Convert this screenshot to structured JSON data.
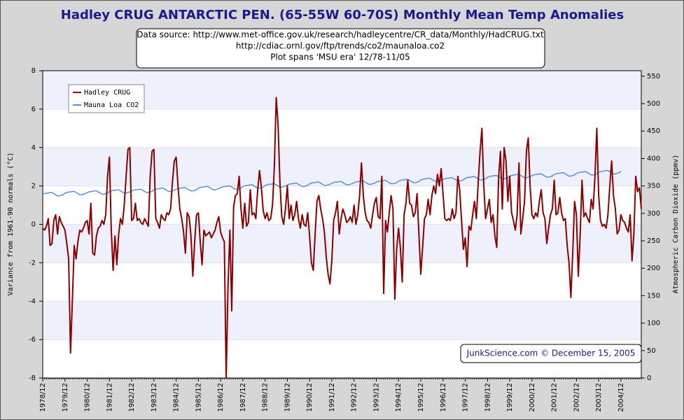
{
  "chart_data": {
    "type": "line",
    "title": "Hadley CRUG ANTARCTIC PEN. (65-55W 60-70S) Monthly Mean Temp Anomalies",
    "annotations": [
      "Data source: http://www.met-office.gov.uk/research/hadleycentre/CR_data/Monthly/HadCRUG.txt",
      "http://cdiac.ornl.gov/ftp/trends/co2/maunaloa.co2",
      "Plot spans 'MSU era' 12/78-11/05"
    ],
    "footnote": "JunkScience.com © December 15, 2005",
    "ylabel": "Variance from 1961-90 normals (°C)",
    "y2label": "Atmospheric Carbon Dioxide (ppmv)",
    "categories": [
      "1978/12",
      null,
      null,
      null,
      null,
      null,
      null,
      null,
      null,
      null,
      null,
      null,
      "1979/12",
      null,
      null,
      null,
      null,
      null,
      null,
      null,
      null,
      null,
      null,
      null,
      "1980/12",
      null,
      null,
      null,
      null,
      null,
      null,
      null,
      null,
      null,
      null,
      null,
      "1981/12",
      null,
      null,
      null,
      null,
      null,
      null,
      null,
      null,
      null,
      null,
      null,
      "1982/12",
      null,
      null,
      null,
      null,
      null,
      null,
      null,
      null,
      null,
      null,
      null,
      "1983/12",
      null,
      null,
      null,
      null,
      null,
      null,
      null,
      null,
      null,
      null,
      null,
      "1984/12",
      null,
      null,
      null,
      null,
      null,
      null,
      null,
      null,
      null,
      null,
      null,
      "1985/12",
      null,
      null,
      null,
      null,
      null,
      null,
      null,
      null,
      null,
      null,
      null,
      "1986/12",
      null,
      null,
      null,
      null,
      null,
      null,
      null,
      null,
      null,
      null,
      null,
      "1987/12",
      null,
      null,
      null,
      null,
      null,
      null,
      null,
      null,
      null,
      null,
      null,
      "1988/12",
      null,
      null,
      null,
      null,
      null,
      null,
      null,
      null,
      null,
      null,
      null,
      "1989/12",
      null,
      null,
      null,
      null,
      null,
      null,
      null,
      null,
      null,
      null,
      null,
      "1990/12",
      null,
      null,
      null,
      null,
      null,
      null,
      null,
      null,
      null,
      null,
      null,
      "1991/12",
      null,
      null,
      null,
      null,
      null,
      null,
      null,
      null,
      null,
      null,
      null,
      "1992/12",
      null,
      null,
      null,
      null,
      null,
      null,
      null,
      null,
      null,
      null,
      null,
      "1993/12",
      null,
      null,
      null,
      null,
      null,
      null,
      null,
      null,
      null,
      null,
      null,
      "1994/12",
      null,
      null,
      null,
      null,
      null,
      null,
      null,
      null,
      null,
      null,
      null,
      "1995/12",
      null,
      null,
      null,
      null,
      null,
      null,
      null,
      null,
      null,
      null,
      null,
      "1996/12",
      null,
      null,
      null,
      null,
      null,
      null,
      null,
      null,
      null,
      null,
      null,
      "1997/12",
      null,
      null,
      null,
      null,
      null,
      null,
      null,
      null,
      null,
      null,
      null,
      "1998/12",
      null,
      null,
      null,
      null,
      null,
      null,
      null,
      null,
      null,
      null,
      null,
      "1999/12",
      null,
      null,
      null,
      null,
      null,
      null,
      null,
      null,
      null,
      null,
      null,
      "2000/12",
      null,
      null,
      null,
      null,
      null,
      null,
      null,
      null,
      null,
      null,
      null,
      "2001/12",
      null,
      null,
      null,
      null,
      null,
      null,
      null,
      null,
      null,
      null,
      null,
      "2002/12",
      null,
      null,
      null,
      null,
      null,
      null,
      null,
      null,
      null,
      null,
      null,
      "2003/12",
      null,
      null,
      null,
      null,
      null,
      null,
      null,
      null,
      null,
      null,
      null,
      "2004/12",
      null,
      null,
      null,
      null,
      null,
      null,
      null,
      null,
      null,
      null,
      null
    ],
    "series": [
      {
        "name": "Hadley CRUG",
        "color": "#8b0000",
        "values": [
          -0.2,
          -0.3,
          -0.1,
          0.3,
          -1.1,
          -1.0,
          0.2,
          0.5,
          -0.5,
          0.4,
          0.1,
          -0.1,
          -0.3,
          -1.0,
          -1.8,
          -6.7,
          -4.0,
          -1.1,
          -1.8,
          -0.9,
          -0.3,
          -0.4,
          -0.2,
          0.1,
          0.2,
          -0.5,
          1.1,
          -1.5,
          -1.6,
          -0.6,
          -0.2,
          -0.1,
          0.2,
          0.0,
          0.5,
          2.5,
          3.5,
          -0.3,
          -2.4,
          -0.6,
          -2.1,
          -0.5,
          0.3,
          0.0,
          1.0,
          2.5,
          3.9,
          4.0,
          0.2,
          0.3,
          1.1,
          0.2,
          0.3,
          0.1,
          0.0,
          0.3,
          0.1,
          -0.1,
          2.5,
          3.8,
          3.9,
          0.3,
          0.1,
          -0.2,
          0.5,
          0.3,
          0.2,
          0.6,
          0.5,
          0.8,
          2.2,
          3.3,
          3.5,
          2.0,
          0.8,
          0.3,
          -0.4,
          -1.5,
          0.6,
          0.4,
          -0.6,
          -2.7,
          -0.9,
          0.5,
          0.6,
          -0.9,
          -2.1,
          -0.3,
          -0.6,
          -0.5,
          -0.4,
          -0.7,
          -0.5,
          -0.3,
          0.1,
          0.4,
          -0.4,
          -0.7,
          -0.9,
          -8.0,
          -3.2,
          -0.3,
          -4.5,
          0.9,
          1.5,
          1.6,
          2.5,
          0.8,
          -0.2,
          1.1,
          -0.1,
          0.1,
          1.8,
          0.5,
          0.6,
          0.3,
          1.8,
          2.8,
          1.9,
          0.7,
          0.3,
          0.6,
          0.2,
          0.3,
          1.0,
          3.0,
          6.6,
          5.2,
          2.2,
          0.4,
          0.0,
          0.8,
          2.0,
          0.3,
          1.0,
          0.2,
          0.5,
          1.2,
          0.3,
          -0.2,
          0.5,
          0.0,
          -0.1,
          0.6,
          -0.6,
          -2.0,
          -2.4,
          -0.5,
          1.2,
          1.5,
          0.8,
          0.3,
          -0.4,
          -1.7,
          -2.6,
          -3.1,
          -1.9,
          0.2,
          0.6,
          1.2,
          -0.5,
          0.3,
          0.8,
          0.5,
          0.1,
          0.2,
          0.4,
          0.1,
          1.0,
          0.0,
          0.5,
          1.5,
          3.2,
          1.5,
          0.6,
          0.2,
          0.1,
          -0.2,
          0.5,
          1.1,
          1.4,
          0.4,
          0.3,
          2.5,
          -3.6,
          0.2,
          -0.4,
          0.6,
          1.5,
          0.8,
          -3.9,
          -1.3,
          -0.2,
          -1.2,
          -3.0,
          0.5,
          1.1,
          2.3,
          1.1,
          1.0,
          0.4,
          0.6,
          1.6,
          -0.5,
          -2.6,
          -1.2,
          0.3,
          0.5,
          1.3,
          0.5,
          1.5,
          2.0,
          1.6,
          2.6,
          2.0,
          2.9,
          1.6,
          0.3,
          0.2,
          0.3,
          0.2,
          0.8,
          0.3,
          0.6,
          2.5,
          1.8,
          0.2,
          -1.3,
          -0.7,
          -2.2,
          -0.1,
          -0.3,
          0.5,
          1.2,
          0.3,
          2.2,
          3.8,
          5.0,
          2.0,
          0.3,
          0.8,
          1.3,
          0.1,
          0.5,
          -0.6,
          -1.2,
          2.4,
          3.8,
          0.8,
          4.0,
          3.3,
          1.2,
          2.5,
          0.6,
          0.2,
          -0.3,
          0.5,
          3.2,
          -0.5,
          0.3,
          1.2,
          3.8,
          4.5,
          2.0,
          0.5,
          0.3,
          0.6,
          0.4,
          1.2,
          1.8,
          0.6,
          0.3,
          -1.0,
          -0.2,
          0.5,
          0.8,
          2.3,
          0.5,
          0.6,
          1.4,
          0.6,
          0.2,
          0.3,
          -1.1,
          -2.0,
          -3.8,
          -1.5,
          1.2,
          0.5,
          -2.7,
          -0.6,
          2.3,
          0.4,
          0.6,
          0.3,
          0.1,
          1.3,
          0.8,
          2.5,
          5.0,
          1.5,
          0.2,
          -0.1,
          0.0,
          -0.2,
          0.5,
          2.0,
          3.3,
          1.5,
          0.8,
          -0.5,
          -0.3,
          0.5,
          0.2,
          0.1,
          -0.2,
          -0.4,
          0.5,
          -1.9,
          -0.5,
          2.5,
          1.7,
          1.9,
          0.8
        ]
      },
      {
        "name": "Mauna Loa CO2",
        "color": "#5b8fdc",
        "axis": "y2",
        "values": [
          335,
          336,
          337,
          337,
          338,
          338,
          336,
          334,
          332,
          332,
          333,
          334,
          337,
          338,
          339,
          339,
          340,
          340,
          338,
          336,
          334,
          334,
          335,
          336,
          338,
          339,
          340,
          340,
          341,
          341,
          339,
          337,
          335,
          335,
          336,
          337,
          340,
          341,
          342,
          342,
          343,
          343,
          341,
          339,
          337,
          337,
          338,
          339,
          341,
          342,
          343,
          343,
          344,
          344,
          342,
          340,
          338,
          338,
          339,
          340,
          343,
          344,
          345,
          345,
          346,
          346,
          344,
          342,
          340,
          340,
          341,
          342,
          344,
          345,
          346,
          346,
          347,
          347,
          345,
          343,
          341,
          341,
          342,
          343,
          346,
          347,
          348,
          348,
          349,
          349,
          347,
          345,
          343,
          343,
          344,
          345,
          347,
          348,
          349,
          349,
          350,
          350,
          348,
          346,
          344,
          344,
          345,
          346,
          349,
          350,
          351,
          351,
          352,
          352,
          350,
          348,
          346,
          346,
          347,
          348,
          351,
          352,
          353,
          353,
          354,
          354,
          352,
          350,
          348,
          348,
          349,
          350,
          352,
          353,
          354,
          354,
          355,
          355,
          353,
          351,
          349,
          349,
          350,
          351,
          354,
          355,
          356,
          356,
          357,
          357,
          355,
          353,
          351,
          351,
          352,
          353,
          355,
          356,
          357,
          357,
          358,
          358,
          356,
          354,
          352,
          352,
          353,
          354,
          356,
          357,
          358,
          358,
          359,
          359,
          357,
          355,
          353,
          353,
          354,
          355,
          357,
          358,
          359,
          359,
          360,
          360,
          358,
          356,
          354,
          354,
          355,
          356,
          359,
          360,
          361,
          361,
          362,
          362,
          360,
          358,
          356,
          356,
          357,
          358,
          361,
          362,
          363,
          363,
          364,
          364,
          362,
          360,
          358,
          358,
          359,
          360,
          362,
          363,
          364,
          364,
          365,
          365,
          363,
          361,
          359,
          359,
          360,
          361,
          364,
          365,
          366,
          366,
          367,
          367,
          365,
          363,
          361,
          361,
          362,
          363,
          366,
          367,
          368,
          368,
          369,
          369,
          367,
          365,
          363,
          363,
          364,
          365,
          368,
          369,
          370,
          370,
          371,
          371,
          369,
          367,
          365,
          365,
          366,
          367,
          369,
          370,
          371,
          371,
          372,
          372,
          370,
          368,
          366,
          366,
          367,
          368,
          371,
          372,
          373,
          373,
          374,
          374,
          372,
          370,
          368,
          368,
          369,
          370,
          373,
          374,
          375,
          375,
          376,
          376,
          374,
          372,
          370,
          370,
          371,
          372,
          375,
          376,
          377,
          377,
          378,
          378,
          376,
          374,
          372,
          372,
          373,
          374,
          377,
          null,
          null,
          null,
          null,
          null,
          null,
          null,
          null,
          null,
          null,
          null
        ]
      }
    ],
    "ylim": [
      -8,
      8
    ],
    "yticks": [
      -8,
      -6,
      -4,
      -2,
      0,
      2,
      4,
      6,
      8
    ],
    "y2lim": [
      0,
      560
    ],
    "y2ticks": [
      0,
      50,
      100,
      150,
      200,
      250,
      300,
      350,
      400,
      450,
      500,
      550
    ],
    "grid": true,
    "legend": "upper left"
  }
}
